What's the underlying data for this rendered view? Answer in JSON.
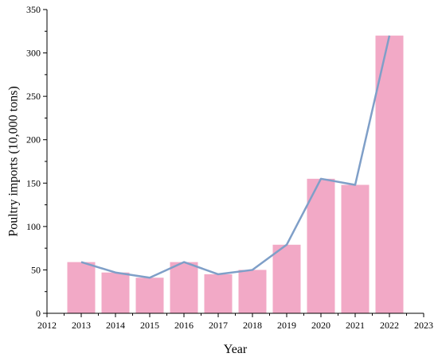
{
  "chart_data": {
    "type": "bar",
    "categories": [
      "2013",
      "2014",
      "2015",
      "2016",
      "2017",
      "2018",
      "2019",
      "2020",
      "2021",
      "2022"
    ],
    "x": [
      2013,
      2014,
      2015,
      2016,
      2017,
      2018,
      2019,
      2020,
      2021,
      2022
    ],
    "values": [
      59,
      47,
      41,
      59,
      45,
      50,
      79,
      155,
      148,
      320
    ],
    "overlay_line": {
      "type": "line",
      "values": [
        59,
        47,
        41,
        59,
        45,
        50,
        79,
        155,
        148,
        320
      ]
    },
    "xlabel": "Year",
    "ylabel": "Poultry imports (10,000 tons)",
    "xlim": [
      2012,
      2023
    ],
    "ylim": [
      0,
      350
    ],
    "xticks": [
      "2012",
      "2013",
      "2014",
      "2015",
      "2016",
      "2017",
      "2018",
      "2019",
      "2020",
      "2021",
      "2022",
      "2023"
    ],
    "yticks": [
      "0",
      "50",
      "100",
      "150",
      "200",
      "250",
      "300",
      "350"
    ],
    "grid": false,
    "colors": {
      "bar": "#f2a9c6",
      "line": "#7f9fc8",
      "axis": "#000000"
    }
  }
}
